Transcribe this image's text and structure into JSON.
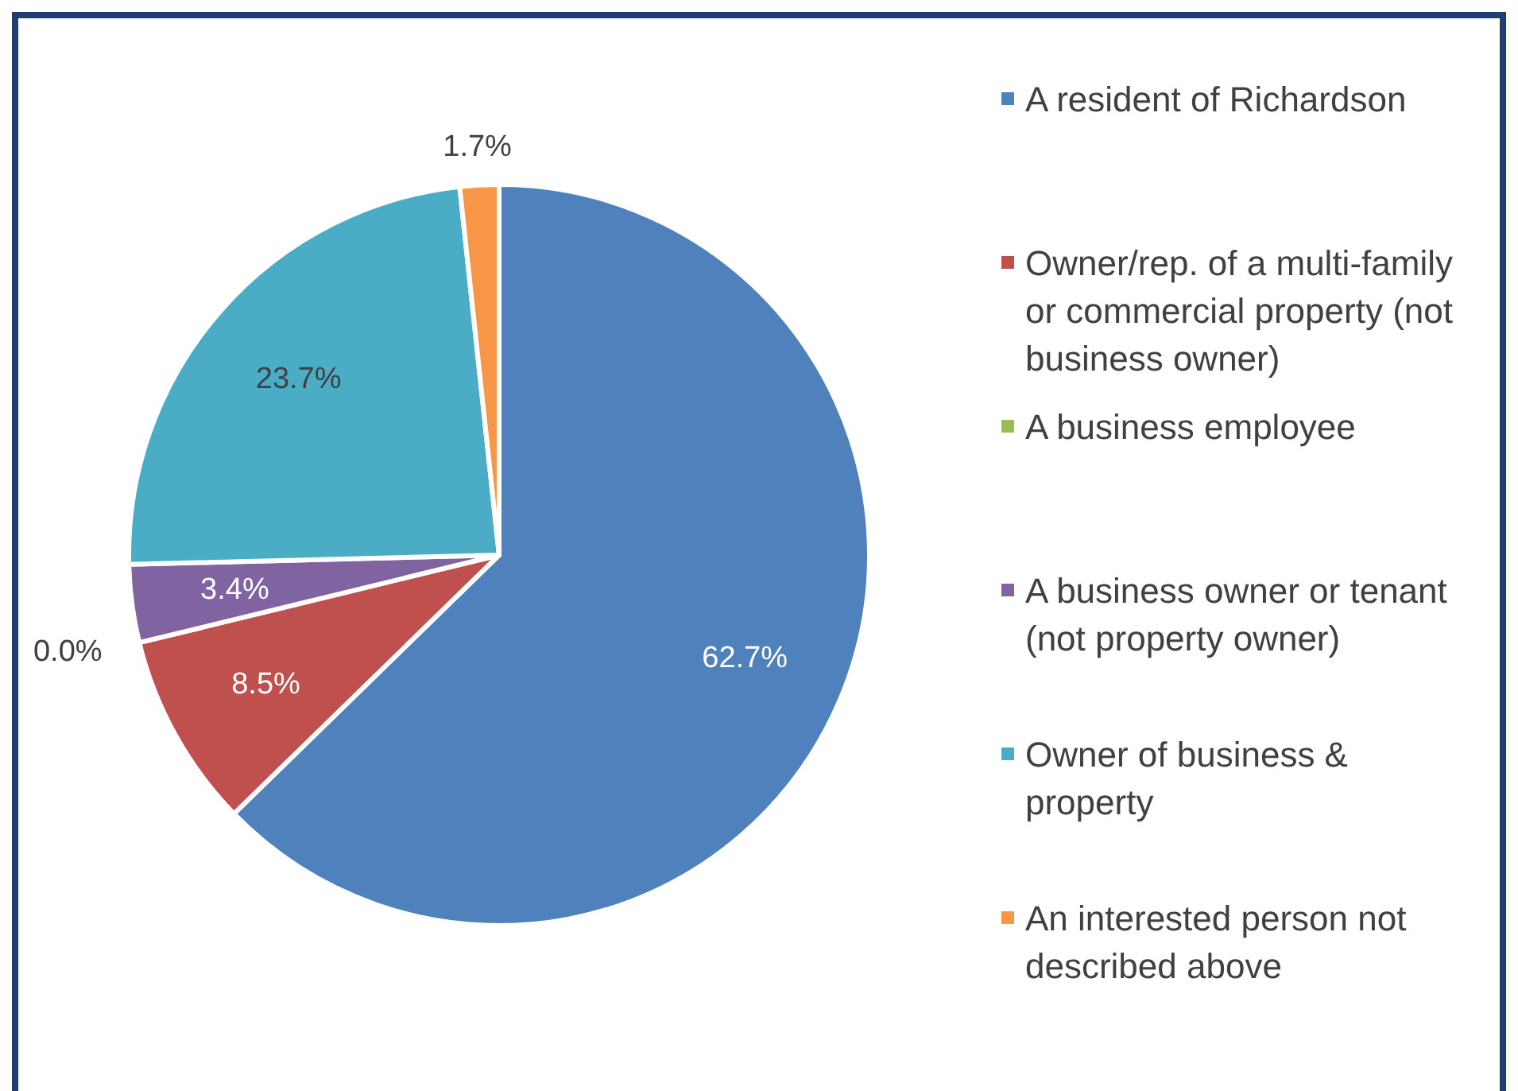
{
  "chart_data": {
    "type": "pie",
    "categories": [
      "A resident of Richardson",
      "Owner/rep. of a multi-family or commercial property (not business owner)",
      "A business employee",
      "A business owner or tenant (not property owner)",
      "Owner of business & property",
      "An interested person not described above"
    ],
    "values": [
      62.7,
      8.5,
      0.0,
      3.4,
      23.7,
      1.7
    ],
    "colors": [
      "#4f81bd",
      "#c0504d",
      "#9bbb59",
      "#8064a2",
      "#4bacc6",
      "#f79646"
    ],
    "value_labels": [
      "62.7%",
      "8.5%",
      "0.0%",
      "3.4%",
      "23.7%",
      "1.7%"
    ],
    "legend": "right"
  }
}
